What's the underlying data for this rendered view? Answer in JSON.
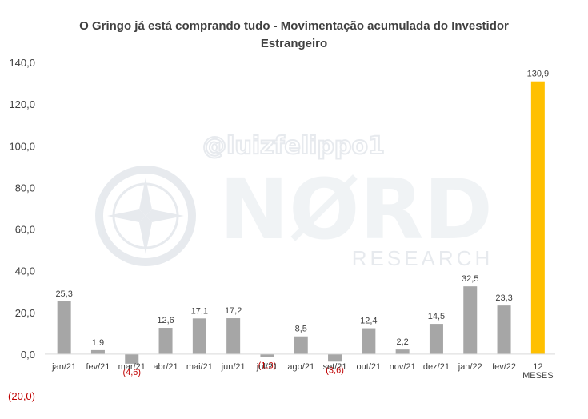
{
  "chart_data": {
    "type": "bar",
    "title": "O Gringo já está comprando tudo - Movimentação acumulada do Investidor Estrangeiro",
    "title_lines": [
      "O Gringo já está comprando tudo - Movimentação acumulada do Investidor",
      "Estrangeiro"
    ],
    "categories": [
      "jan/21",
      "fev/21",
      "mar/21",
      "abr/21",
      "mai/21",
      "jun/21",
      "jul/21",
      "ago/21",
      "set/21",
      "out/21",
      "nov/21",
      "dez/21",
      "jan/22",
      "fev/22",
      "12 MESES"
    ],
    "category_lines": [
      [
        "jan/21"
      ],
      [
        "fev/21"
      ],
      [
        "mar/21"
      ],
      [
        "abr/21"
      ],
      [
        "mai/21"
      ],
      [
        "jun/21"
      ],
      [
        "jul/21"
      ],
      [
        "ago/21"
      ],
      [
        "set/21"
      ],
      [
        "out/21"
      ],
      [
        "nov/21"
      ],
      [
        "dez/21"
      ],
      [
        "jan/22"
      ],
      [
        "fev/22"
      ],
      [
        "12",
        "MESES"
      ]
    ],
    "values": [
      25.3,
      1.9,
      -4.6,
      12.6,
      17.1,
      17.2,
      -1.3,
      8.5,
      -3.6,
      12.4,
      2.2,
      14.5,
      32.5,
      23.3,
      130.9
    ],
    "value_labels": [
      "25,3",
      "1,9",
      "(4,6)",
      "12,6",
      "17,1",
      "17,2",
      "(1,3)",
      "8,5",
      "(3,6)",
      "12,4",
      "2,2",
      "14,5",
      "32,5",
      "23,3",
      "130,9"
    ],
    "y_ticks": [
      -20,
      0,
      20,
      40,
      60,
      80,
      100,
      120,
      140
    ],
    "y_tick_labels": [
      "(20,0)",
      "0,0",
      "20,0",
      "40,0",
      "60,0",
      "80,0",
      "100,0",
      "120,0",
      "140,0"
    ],
    "ylim": [
      -20,
      140
    ],
    "xlabel": "",
    "ylabel": "",
    "grid": false,
    "legend": "none",
    "colors": {
      "bar": "#a6a6a6",
      "highlight_bar": "#ffc000",
      "negative_label": "#c00000",
      "label": "#404040",
      "axis": "#d9d9d9"
    }
  },
  "watermark": {
    "handle": "@luizfelippo1",
    "brand": "NØRD",
    "brand_sub": "RESEARCH",
    "color": "#dfe3e8"
  }
}
